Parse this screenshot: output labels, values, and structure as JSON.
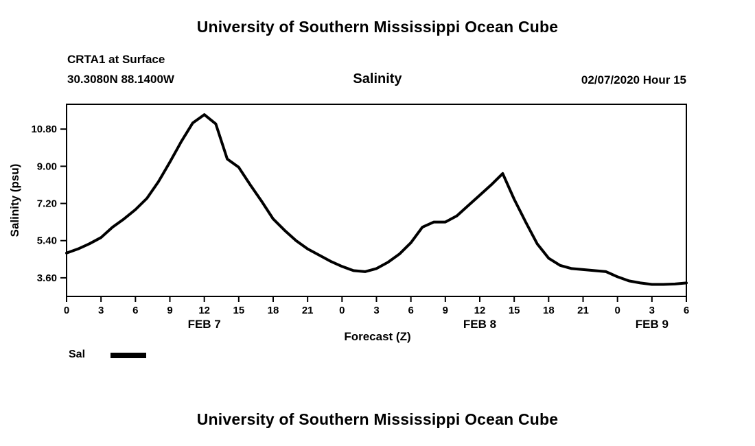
{
  "page": {
    "title_top": "University of Southern Mississippi Ocean Cube",
    "title_bottom": "University of Southern Mississippi Ocean Cube"
  },
  "header": {
    "station_line1": "CRTA1 at Surface",
    "station_line2": "30.3080N 88.1400W",
    "plot_title": "Salinity",
    "run_info": "02/07/2020 Hour 15"
  },
  "legend": {
    "label": "Sal",
    "swatch_color": "#000000"
  },
  "chart_data": {
    "type": "line",
    "title": "Salinity",
    "xlabel": "Forecast (Z)",
    "ylabel": "Salinity (psu)",
    "grid": false,
    "legend_position": "bottom-left",
    "ylim": [
      2.7,
      12.0
    ],
    "xlim_hours": [
      0,
      54
    ],
    "yticks": [
      3.6,
      5.4,
      7.2,
      9.0,
      10.8
    ],
    "ytick_labels": [
      "3.60",
      "5.40",
      "7.20",
      "9.00",
      "10.80"
    ],
    "xtick_hours": [
      0,
      3,
      6,
      9,
      12,
      15,
      18,
      21,
      24,
      27,
      30,
      33,
      36,
      39,
      42,
      45,
      48,
      51,
      54
    ],
    "xtick_labels": [
      "0",
      "3",
      "6",
      "9",
      "12",
      "15",
      "18",
      "21",
      "0",
      "3",
      "6",
      "9",
      "12",
      "15",
      "18",
      "21",
      "0",
      "3",
      "6"
    ],
    "date_labels": [
      {
        "hour": 12,
        "label": "FEB 7"
      },
      {
        "hour": 36,
        "label": "FEB 8"
      },
      {
        "hour": 51,
        "label": "FEB 9"
      }
    ],
    "series": [
      {
        "name": "Sal",
        "color": "#000000",
        "x_hours": [
          0,
          1,
          2,
          3,
          4,
          5,
          6,
          7,
          8,
          9,
          10,
          11,
          12,
          13,
          14,
          15,
          16,
          17,
          18,
          19,
          20,
          21,
          22,
          23,
          24,
          25,
          26,
          27,
          28,
          29,
          30,
          31,
          32,
          33,
          34,
          35,
          36,
          37,
          38,
          39,
          40,
          41,
          42,
          43,
          44,
          45,
          46,
          47,
          48,
          49,
          50,
          51,
          52,
          53,
          54
        ],
        "values": [
          4.8,
          5.0,
          5.25,
          5.55,
          6.05,
          6.45,
          6.9,
          7.45,
          8.25,
          9.2,
          10.2,
          11.1,
          11.5,
          11.05,
          9.35,
          8.95,
          8.1,
          7.3,
          6.45,
          5.9,
          5.4,
          5.0,
          4.7,
          4.4,
          4.15,
          3.95,
          3.9,
          4.05,
          4.35,
          4.75,
          5.3,
          6.05,
          6.3,
          6.3,
          6.6,
          7.1,
          7.6,
          8.1,
          8.65,
          7.4,
          6.3,
          5.25,
          4.55,
          4.2,
          4.05,
          4.0,
          3.95,
          3.9,
          3.65,
          3.45,
          3.35,
          3.28,
          3.28,
          3.3,
          3.35
        ]
      }
    ]
  }
}
